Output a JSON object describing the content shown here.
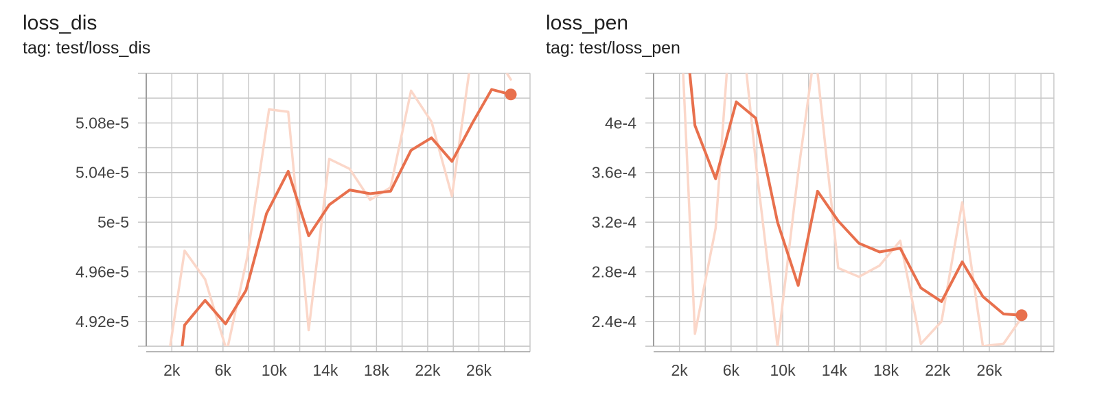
{
  "accent_color": "#e8704d",
  "faint_color": "#fbd7c9",
  "chart_data": [
    {
      "type": "line",
      "title": "loss_dis",
      "subtitle": "tag: test/loss_dis",
      "xlabel": "",
      "ylabel": "",
      "xlim": [
        0,
        30000
      ],
      "ylim": [
        4.9e-05,
        5.12e-05
      ],
      "grid": true,
      "x_ticks": [
        2000,
        6000,
        10000,
        14000,
        18000,
        22000,
        26000
      ],
      "x_tick_labels": [
        "2k",
        "6k",
        "10k",
        "14k",
        "18k",
        "22k",
        "26k"
      ],
      "y_ticks": [
        4.92e-05,
        4.96e-05,
        5e-05,
        5.04e-05,
        5.08e-05
      ],
      "y_tick_labels": [
        "4.92e-5",
        "4.96e-5",
        "5e-5",
        "5.04e-5",
        "5.08e-5"
      ],
      "series": [
        {
          "role": "raw",
          "x": [
            1800,
            3000,
            4600,
            6300,
            7900,
            9600,
            11100,
            12700,
            14300,
            15900,
            17500,
            19100,
            20700,
            22300,
            23900,
            25500,
            27000,
            28500
          ],
          "y": [
            4.895e-05,
            4.977e-05,
            4.954e-05,
            4.896e-05,
            4.972e-05,
            5.091e-05,
            5.089e-05,
            4.913e-05,
            5.051e-05,
            5.043e-05,
            5.018e-05,
            5.028e-05,
            5.106e-05,
            5.081e-05,
            5.021e-05,
            5.14e-05,
            5.14e-05,
            5.115e-05
          ]
        },
        {
          "role": "smoothed",
          "x": [
            2700,
            3000,
            4600,
            6200,
            7800,
            9400,
            11100,
            12700,
            14300,
            15900,
            17500,
            19100,
            20700,
            22300,
            23900,
            25500,
            27000,
            28500
          ],
          "y": [
            4.89e-05,
            4.917e-05,
            4.937e-05,
            4.918e-05,
            4.945e-05,
            5.007e-05,
            5.041e-05,
            4.989e-05,
            5.014e-05,
            5.026e-05,
            5.023e-05,
            5.025e-05,
            5.058e-05,
            5.068e-05,
            5.049e-05,
            5.08e-05,
            5.107e-05,
            5.103e-05
          ]
        }
      ]
    },
    {
      "type": "line",
      "title": "loss_pen",
      "subtitle": "tag: test/loss_pen",
      "xlabel": "",
      "ylabel": "",
      "xlim": [
        0,
        31000
      ],
      "ylim": [
        0.00022,
        0.00044
      ],
      "grid": true,
      "x_ticks": [
        2000,
        6000,
        10000,
        14000,
        18000,
        22000,
        26000
      ],
      "x_tick_labels": [
        "2k",
        "6k",
        "10k",
        "14k",
        "18k",
        "22k",
        "26k"
      ],
      "y_ticks": [
        0.00024,
        0.00028,
        0.00032,
        0.00036,
        0.0004
      ],
      "y_tick_labels": [
        "2.4e-4",
        "2.8e-4",
        "3.2e-4",
        "3.6e-4",
        "4e-4"
      ],
      "series": [
        {
          "role": "raw",
          "x": [
            2200,
            3200,
            4800,
            5800,
            7000,
            8000,
            9600,
            11200,
            12500,
            14300,
            15900,
            17500,
            19100,
            20700,
            22300,
            23900,
            25500,
            27100,
            28500
          ],
          "y": [
            0.00046,
            0.00023,
            0.000315,
            0.00046,
            0.00046,
            0.00036,
            0.00022,
            0.00036,
            0.00046,
            0.000283,
            0.000276,
            0.000285,
            0.000305,
            0.000222,
            0.00024,
            0.000336,
            0.00022,
            0.000222,
            0.000243
          ]
        },
        {
          "role": "smoothed",
          "x": [
            2800,
            3200,
            4800,
            6400,
            7900,
            9600,
            11200,
            12700,
            14300,
            15900,
            17500,
            19100,
            20700,
            22300,
            23900,
            25500,
            27100,
            28500
          ],
          "y": [
            0.00044,
            0.000398,
            0.000355,
            0.000417,
            0.000404,
            0.00032,
            0.000269,
            0.000345,
            0.000321,
            0.000303,
            0.000296,
            0.000299,
            0.000267,
            0.000256,
            0.000288,
            0.00026,
            0.000246,
            0.000245
          ]
        }
      ]
    }
  ]
}
